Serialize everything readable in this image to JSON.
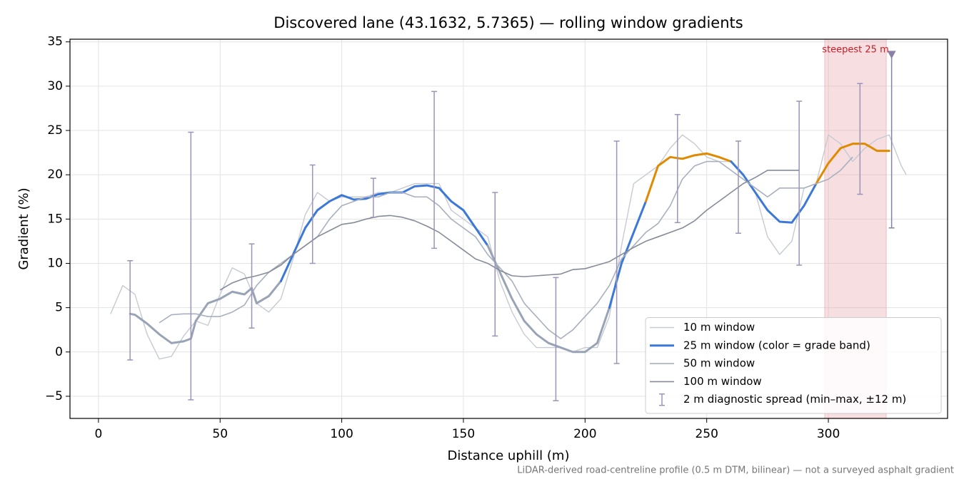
{
  "chart_data": {
    "type": "line",
    "title": "Discovered lane (43.1632, 5.7365) — rolling window gradients",
    "x_label": "Distance uphill (m)",
    "y_label": "Gradient (%)",
    "footnote": "LiDAR-derived road-centreline profile (0.5 m DTM, bilinear) — not a surveyed asphalt gradient",
    "xlim": [
      -11.7,
      349
    ],
    "ylim": [
      -7.5,
      35.3
    ],
    "xticks": [
      0,
      50,
      100,
      150,
      200,
      250,
      300
    ],
    "yticks": [
      {
        "value": -5,
        "label": "−5"
      },
      0,
      5,
      10,
      15,
      20,
      25,
      30,
      35
    ],
    "grid": true,
    "legend": "lower right",
    "series": [
      {
        "name": "10 m window",
        "color": "#c6cad2",
        "x": [
          5,
          10,
          15,
          20,
          25,
          30,
          35,
          40,
          45,
          50,
          55,
          60,
          65,
          70,
          75,
          80,
          85,
          90,
          95,
          100,
          105,
          110,
          115,
          120,
          125,
          130,
          135,
          140,
          145,
          150,
          155,
          160,
          165,
          170,
          175,
          180,
          185,
          190,
          195,
          200,
          205,
          210,
          215,
          220,
          225,
          230,
          235,
          240,
          245,
          250,
          255,
          260,
          265,
          270,
          275,
          280,
          285,
          290,
          295,
          300,
          305,
          310,
          315,
          320,
          325,
          330,
          332
        ],
        "values": [
          4.3,
          7.5,
          6.5,
          2,
          -0.8,
          -0.5,
          1.8,
          3.5,
          3,
          6.5,
          9.5,
          8.8,
          5.5,
          4.5,
          6,
          10.5,
          15.5,
          18,
          17,
          17.5,
          17.5,
          17.5,
          18,
          18,
          18.5,
          19,
          19,
          19,
          16,
          15,
          14,
          13,
          8,
          4.5,
          2,
          0.5,
          0.5,
          0.5,
          0,
          0.5,
          0.5,
          4,
          12,
          19,
          20,
          21,
          23,
          24.5,
          23.5,
          22,
          21.5,
          21.5,
          20,
          18,
          13,
          11,
          12.5,
          18.5,
          19,
          24.5,
          23.5,
          21.5,
          23,
          24,
          24.5,
          21,
          20
        ]
      },
      {
        "name": "25 m window (color = grade band)",
        "color": "#3b78d8",
        "x": [
          13,
          15,
          20,
          25,
          30,
          35,
          38,
          40,
          45,
          50,
          55,
          60,
          63,
          65,
          70,
          75,
          80,
          85,
          90,
          95,
          100,
          105,
          110,
          115,
          120,
          125,
          130,
          135,
          140,
          145,
          150,
          155,
          160,
          165,
          170,
          175,
          180,
          185,
          190,
          195,
          200,
          205,
          210,
          215,
          220,
          225,
          230,
          235,
          240,
          245,
          250,
          255,
          260,
          265,
          270,
          275,
          280,
          285,
          290,
          295,
          300,
          305,
          310,
          315,
          320,
          325
        ],
        "values": [
          4.3,
          4.2,
          3.2,
          2,
          1,
          1.2,
          1.5,
          3.5,
          5.5,
          6,
          6.8,
          6.5,
          7.2,
          5.5,
          6.3,
          8,
          11,
          14,
          16,
          17,
          17.7,
          17.2,
          17.3,
          17.8,
          18,
          18,
          18.7,
          18.8,
          18.5,
          17,
          16,
          14,
          12,
          9,
          6,
          3.5,
          2,
          1,
          0.5,
          0,
          0,
          1,
          5,
          10,
          13.5,
          17,
          21,
          22,
          21.8,
          22.2,
          22.4,
          22,
          21.5,
          20,
          18,
          16,
          14.7,
          14.6,
          16.5,
          19,
          21.3,
          23,
          23.5,
          23.5,
          22.7,
          22.7
        ],
        "colors": [
          "#98a4b6",
          "#98a4b6",
          "#98a4b6",
          "#98a4b6",
          "#98a4b6",
          "#98a4b6",
          "#98a4b6",
          "#98a4b6",
          "#98a4b6",
          "#98a4b6",
          "#98a4b6",
          "#98a4b6",
          "#98a4b6",
          "#98a4b6",
          "#98a4b6",
          "#98a4b6",
          "#3b78d8",
          "#3b78d8",
          "#3b78d8",
          "#3b78d8",
          "#3b78d8",
          "#3b78d8",
          "#3b78d8",
          "#3b78d8",
          "#3b78d8",
          "#3b78d8",
          "#3b78d8",
          "#3b78d8",
          "#3b78d8",
          "#3b78d8",
          "#3b78d8",
          "#3b78d8",
          "#3b78d8",
          "#98a4b6",
          "#98a4b6",
          "#98a4b6",
          "#98a4b6",
          "#98a4b6",
          "#98a4b6",
          "#98a4b6",
          "#98a4b6",
          "#98a4b6",
          "#98a4b6",
          "#3b78d8",
          "#3b78d8",
          "#3b78d8",
          "#e08a00",
          "#e08a00",
          "#e08a00",
          "#e08a00",
          "#e08a00",
          "#e08a00",
          "#e08a00",
          "#3b78d8",
          "#3b78d8",
          "#3b78d8",
          "#3b78d8",
          "#3b78d8",
          "#3b78d8",
          "#3b78d8",
          "#e08a00",
          "#e08a00",
          "#e08a00",
          "#e08a00",
          "#e08a00",
          "#e08a00"
        ]
      },
      {
        "name": "50 m window",
        "color": "#a8b0be",
        "x": [
          25,
          30,
          35,
          40,
          45,
          50,
          55,
          60,
          65,
          70,
          75,
          80,
          85,
          90,
          95,
          100,
          105,
          110,
          115,
          120,
          125,
          130,
          135,
          140,
          145,
          150,
          155,
          160,
          165,
          170,
          175,
          180,
          185,
          190,
          195,
          200,
          205,
          210,
          215,
          220,
          225,
          230,
          235,
          240,
          245,
          250,
          255,
          260,
          265,
          270,
          275,
          280,
          285,
          290,
          295,
          300,
          305,
          310
        ],
        "values": [
          3.3,
          4.2,
          4.3,
          4.3,
          4,
          4,
          4.5,
          5.3,
          7.5,
          9,
          10,
          11,
          12,
          13,
          15,
          16.5,
          17,
          17.5,
          17.5,
          18,
          18,
          17.5,
          17.5,
          16.5,
          15,
          14,
          13,
          11,
          9.5,
          8,
          5.5,
          4,
          2.5,
          1.5,
          2.5,
          4,
          5.5,
          7.5,
          10.5,
          12,
          13.5,
          14.5,
          16.5,
          19.5,
          21,
          21.5,
          21.5,
          20.5,
          19.5,
          18.5,
          17.5,
          18.5,
          18.5,
          18.5,
          19,
          19.5,
          20.5,
          22
        ]
      },
      {
        "name": "100 m window",
        "color": "#858b99",
        "x": [
          50,
          55,
          60,
          65,
          70,
          75,
          80,
          85,
          90,
          95,
          100,
          105,
          110,
          115,
          120,
          125,
          130,
          135,
          140,
          145,
          150,
          155,
          160,
          165,
          170,
          175,
          180,
          185,
          190,
          195,
          200,
          205,
          210,
          215,
          220,
          225,
          230,
          235,
          240,
          245,
          250,
          255,
          260,
          265,
          270,
          275,
          280,
          288
        ],
        "values": [
          7,
          7.8,
          8.3,
          8.6,
          9,
          9.8,
          11,
          12,
          13,
          13.7,
          14.4,
          14.6,
          15,
          15.3,
          15.4,
          15.2,
          14.8,
          14.2,
          13.5,
          12.5,
          11.5,
          10.5,
          10,
          9.2,
          8.6,
          8.5,
          8.6,
          8.7,
          8.8,
          9.3,
          9.4,
          9.8,
          10.2,
          11,
          11.8,
          12.5,
          13,
          13.5,
          14,
          14.8,
          16,
          17,
          18,
          19,
          19.7,
          20.5,
          20.5,
          20.5
        ]
      }
    ],
    "spread": {
      "name": "2 m diagnostic spread (min–max, ±12 m)",
      "color": "#9a94b8",
      "x": [
        13,
        38,
        63,
        88,
        113,
        138,
        163,
        188,
        213,
        238,
        263,
        288,
        313
      ],
      "low": [
        -0.9,
        -5.4,
        2.7,
        10,
        15.2,
        11.7,
        1.8,
        -5.5,
        -1.3,
        14.6,
        13.4,
        9.8,
        17.8
      ],
      "high": [
        10.3,
        24.8,
        12.2,
        21.1,
        19.6,
        29.4,
        18,
        8.4,
        23.8,
        26.8,
        23.8,
        28.3,
        30.3
      ]
    },
    "steepest": {
      "label": "steepest 25 m",
      "span": [
        298.5,
        323.8
      ],
      "color": "#e8a0a8",
      "marker_x": 326,
      "marker_low": 14,
      "marker_high": 33.5,
      "marker_color": "#8a7fa8"
    }
  }
}
